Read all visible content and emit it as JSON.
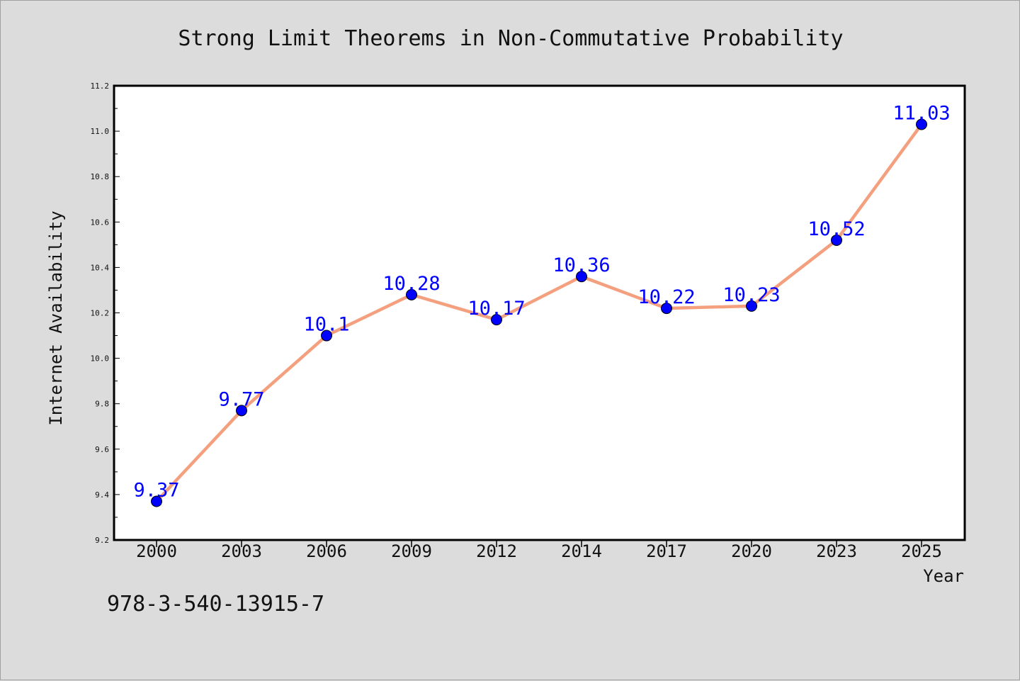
{
  "chart_data": {
    "type": "line",
    "title": "Strong Limit Theorems in Non-Commutative Probability",
    "xlabel": "Year",
    "ylabel": "Internet Availability",
    "categories": [
      "2000",
      "2003",
      "2006",
      "2009",
      "2012",
      "2014",
      "2017",
      "2020",
      "2023",
      "2025"
    ],
    "series": [
      {
        "values": [
          9.37,
          9.77,
          10.1,
          10.28,
          10.17,
          10.36,
          10.22,
          10.23,
          10.52,
          11.03
        ],
        "data_labels": [
          "9.37",
          "9.77",
          "10.1",
          "10.28",
          "10.17",
          "10.36",
          "10.22",
          "10.23",
          "10.52",
          "11.03"
        ],
        "line_color": "#f4a07e",
        "marker_color": "#0000ff"
      }
    ],
    "ylim": [
      9.2,
      11.2
    ],
    "yticks": [
      "9.2",
      "9.4",
      "9.6",
      "9.8",
      "10.0",
      "10.2",
      "10.4",
      "10.6",
      "10.8",
      "11.0",
      "11.2"
    ],
    "grid": false,
    "label_color": "#0000ff"
  },
  "footer": {
    "isbn": "978-3-540-13915-7"
  }
}
